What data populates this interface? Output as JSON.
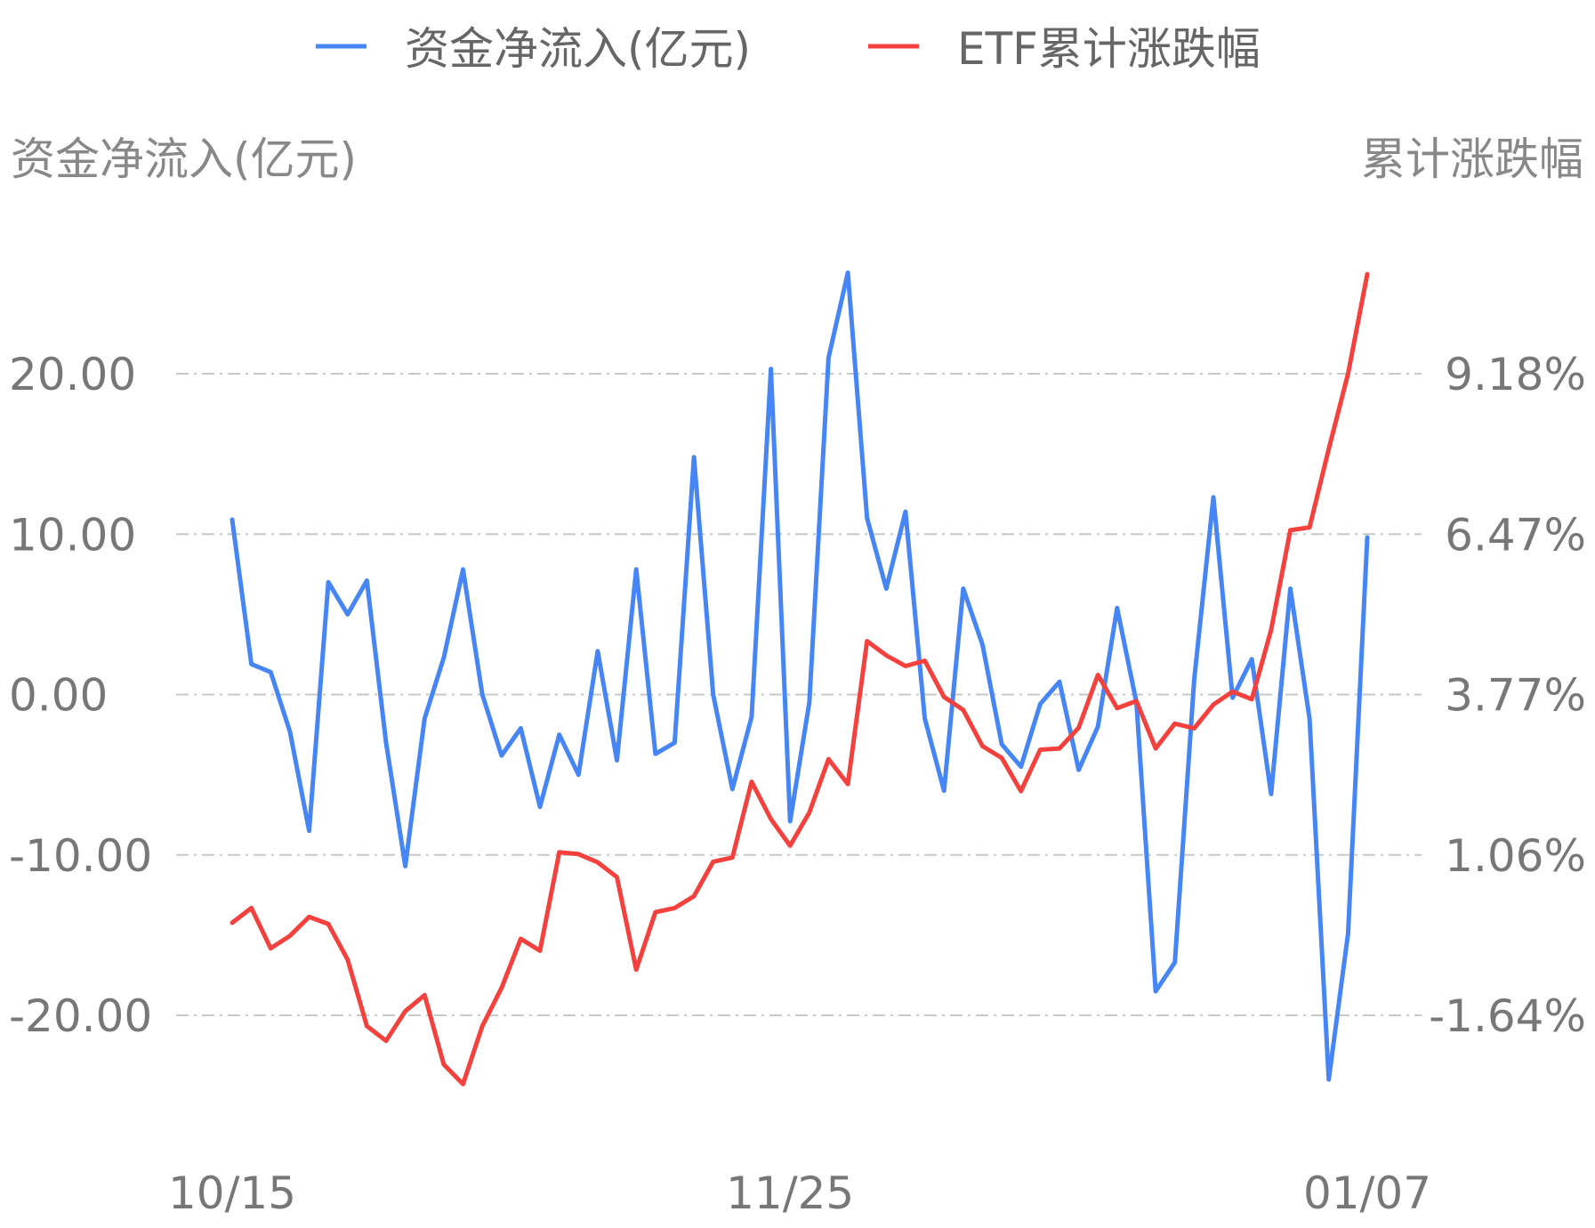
{
  "chart_data": {
    "type": "line",
    "legend": {
      "position": "top-center",
      "items": [
        {
          "label": "资金净流入(亿元)",
          "color": "#4585F5"
        },
        {
          "label": "ETF累计涨跌幅",
          "color": "#F5413D"
        }
      ]
    },
    "y_left": {
      "title": "资金净流入(亿元)",
      "ticks": [
        20,
        10,
        0,
        -10,
        -20
      ],
      "tick_labels": [
        "20.00",
        "10.00",
        "0.00",
        "-10.00",
        "-20.00"
      ],
      "range": [
        -20,
        20
      ]
    },
    "y_right": {
      "title": "累计涨跌幅",
      "ticks": [
        9.18,
        6.47,
        3.77,
        1.06,
        -1.64
      ],
      "tick_labels": [
        "9.18%",
        "6.47%",
        "3.77%",
        "1.06%",
        "-1.64%"
      ],
      "range": [
        -1.64,
        9.18
      ]
    },
    "x_ticks": [
      {
        "label": "10/15",
        "index": 0
      },
      {
        "label": "11/25",
        "index": 29
      },
      {
        "label": "01/07",
        "index": 59
      }
    ],
    "grid": true,
    "series": [
      {
        "name": "资金净流入(亿元)",
        "axis": "left",
        "color": "#4585F5",
        "values": [
          10.9,
          1.9,
          1.4,
          -2.3,
          -8.5,
          7.0,
          5.0,
          7.1,
          -3.0,
          -10.7,
          -1.5,
          2.3,
          7.8,
          0.0,
          -3.8,
          -2.1,
          -7.0,
          -2.5,
          -5.0,
          2.7,
          -4.1,
          7.8,
          -3.7,
          -3.0,
          14.8,
          0.0,
          -5.9,
          -1.4,
          20.3,
          -7.9,
          -0.5,
          21.0,
          26.3,
          11.0,
          6.6,
          11.4,
          -1.5,
          -6.0,
          6.6,
          3.1,
          -3.1,
          -4.5,
          -0.6,
          0.8,
          -4.7,
          -2.0,
          5.4,
          -0.5,
          -18.5,
          -16.7,
          0.9,
          12.3,
          -0.2,
          2.2,
          -6.2,
          6.6,
          -1.5,
          -24.0,
          -14.9,
          9.8
        ]
      },
      {
        "name": "ETF累计涨跌幅",
        "axis": "right",
        "color": "#F5413D",
        "values": [
          -0.08,
          0.17,
          -0.51,
          -0.3,
          0.02,
          -0.1,
          -0.7,
          -1.82,
          -2.07,
          -1.57,
          -1.3,
          -2.47,
          -2.8,
          -1.82,
          -1.18,
          -0.35,
          -0.55,
          1.11,
          1.08,
          0.94,
          0.69,
          -0.87,
          0.1,
          0.17,
          0.37,
          0.95,
          1.02,
          2.3,
          1.67,
          1.22,
          1.78,
          2.68,
          2.26,
          4.67,
          4.43,
          4.25,
          4.34,
          3.73,
          3.51,
          2.9,
          2.7,
          2.14,
          2.84,
          2.86,
          3.21,
          4.1,
          3.54,
          3.66,
          2.86,
          3.28,
          3.2,
          3.6,
          3.82,
          3.69,
          4.86,
          6.54,
          6.59,
          7.91,
          9.18,
          10.86
        ]
      }
    ]
  }
}
